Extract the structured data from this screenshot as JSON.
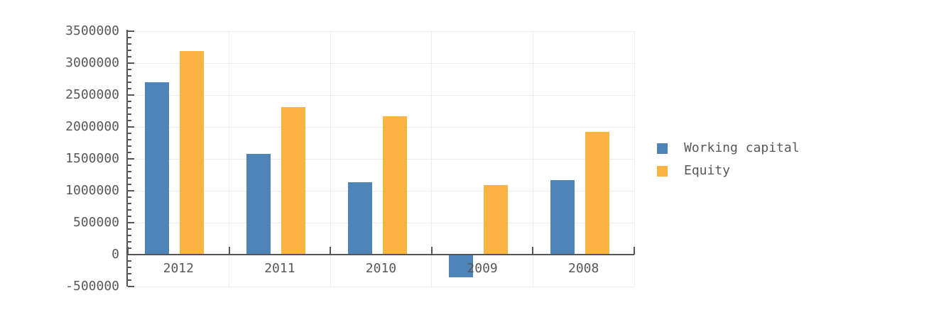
{
  "chart_data": {
    "type": "bar",
    "title": "",
    "categories": [
      "2012",
      "2011",
      "2010",
      "2009",
      "2008"
    ],
    "series": [
      {
        "name": "Working capital",
        "color": "#4e84b8",
        "values": [
          2700000,
          1580000,
          1130000,
          -360000,
          1170000
        ]
      },
      {
        "name": "Equity",
        "color": "#fbb442",
        "values": [
          3190000,
          2310000,
          2170000,
          1090000,
          1920000
        ]
      }
    ],
    "xlabel": "",
    "ylabel": "",
    "ylim": [
      -500000,
      3500000
    ],
    "ytick_interval": 500000,
    "yminor_tick_interval": 100000,
    "ytick_labels": [
      "3500000",
      "3000000",
      "2500000",
      "2000000",
      "1500000",
      "1000000",
      "500000",
      "0",
      "-500000"
    ],
    "grid": true,
    "legend_position": "right",
    "colors": {
      "axis": "#565658",
      "grid": "#ececec",
      "text": "#58585a",
      "background": "#ffffff"
    }
  }
}
